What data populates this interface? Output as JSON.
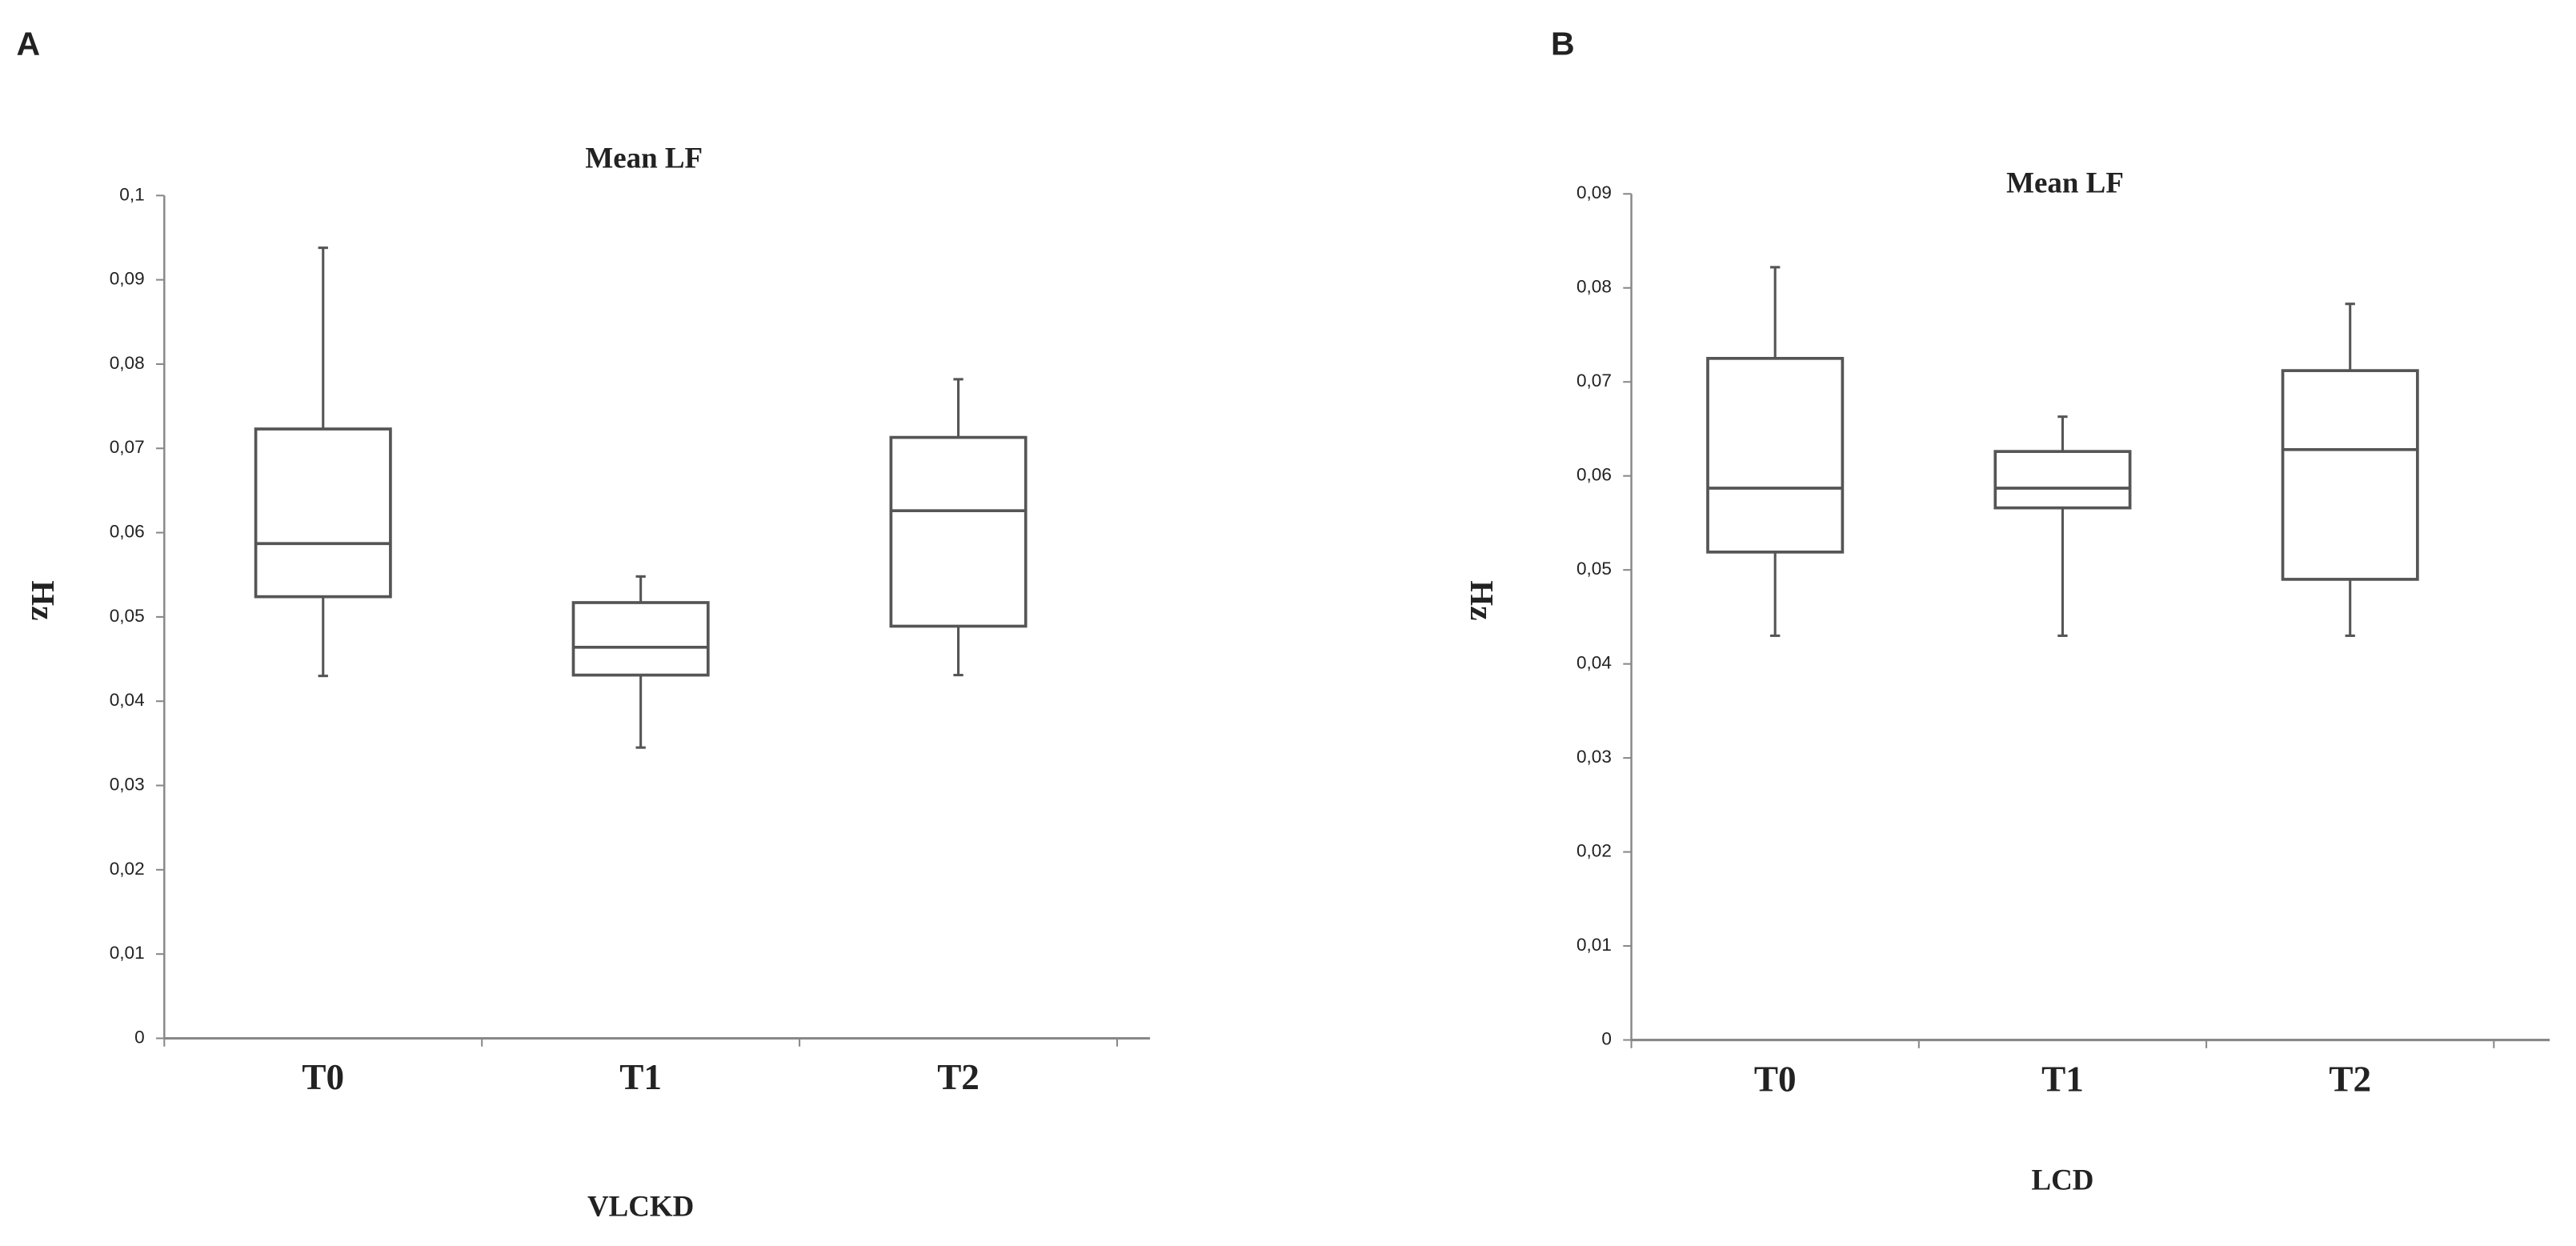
{
  "chart_data": [
    {
      "type": "box",
      "panel": "A",
      "title": "Mean LF",
      "ylabel": "Hz",
      "xlabel": "VLCKD",
      "categories": [
        "T0",
        "T1",
        "T2"
      ],
      "stats": [
        {
          "whisker_low": 0.043,
          "q1": 0.0524,
          "median": 0.0587,
          "q3": 0.0723,
          "whisker_high": 0.0938
        },
        {
          "whisker_low": 0.0345,
          "q1": 0.0431,
          "median": 0.0464,
          "q3": 0.0517,
          "whisker_high": 0.0548
        },
        {
          "whisker_low": 0.0431,
          "q1": 0.0489,
          "median": 0.0626,
          "q3": 0.0713,
          "whisker_high": 0.0782
        }
      ],
      "color": "#555555",
      "ylim": [
        0,
        0.1
      ],
      "yticks": [
        0,
        {
          "value": 0.01,
          "label": "0,01"
        },
        {
          "value": 0.02,
          "label": "0,02"
        },
        {
          "value": 0.03,
          "label": "0,03"
        },
        {
          "value": 0.04,
          "label": "0,04"
        },
        {
          "value": 0.05,
          "label": "0,05"
        },
        {
          "value": 0.06,
          "label": "0,06"
        },
        {
          "value": 0.07,
          "label": "0,07"
        },
        {
          "value": 0.08,
          "label": "0,08"
        },
        {
          "value": 0.09,
          "label": "0,09"
        },
        {
          "value": 0.1,
          "label": "0,1"
        }
      ]
    },
    {
      "type": "box",
      "panel": "B",
      "title": "Mean LF",
      "ylabel": "Hz",
      "xlabel": "LCD",
      "categories": [
        "T0",
        "T1",
        "T2"
      ],
      "stats": [
        {
          "whisker_low": 0.043,
          "q1": 0.0519,
          "median": 0.0587,
          "q3": 0.0725,
          "whisker_high": 0.0822
        },
        {
          "whisker_low": 0.043,
          "q1": 0.0566,
          "median": 0.0587,
          "q3": 0.0626,
          "whisker_high": 0.0663
        },
        {
          "whisker_low": 0.043,
          "q1": 0.049,
          "median": 0.0628,
          "q3": 0.0712,
          "whisker_high": 0.0783
        }
      ],
      "color": "#555555",
      "ylim": [
        0,
        0.09
      ],
      "yticks": [
        0,
        {
          "value": 0.01,
          "label": "0,01"
        },
        {
          "value": 0.02,
          "label": "0,02"
        },
        {
          "value": 0.03,
          "label": "0,03"
        },
        {
          "value": 0.04,
          "label": "0,04"
        },
        {
          "value": 0.05,
          "label": "0,05"
        },
        {
          "value": 0.06,
          "label": "0,06"
        },
        {
          "value": 0.07,
          "label": "0,07"
        },
        {
          "value": 0.08,
          "label": "0,08"
        },
        {
          "value": 0.09,
          "label": "0,09"
        }
      ]
    }
  ]
}
